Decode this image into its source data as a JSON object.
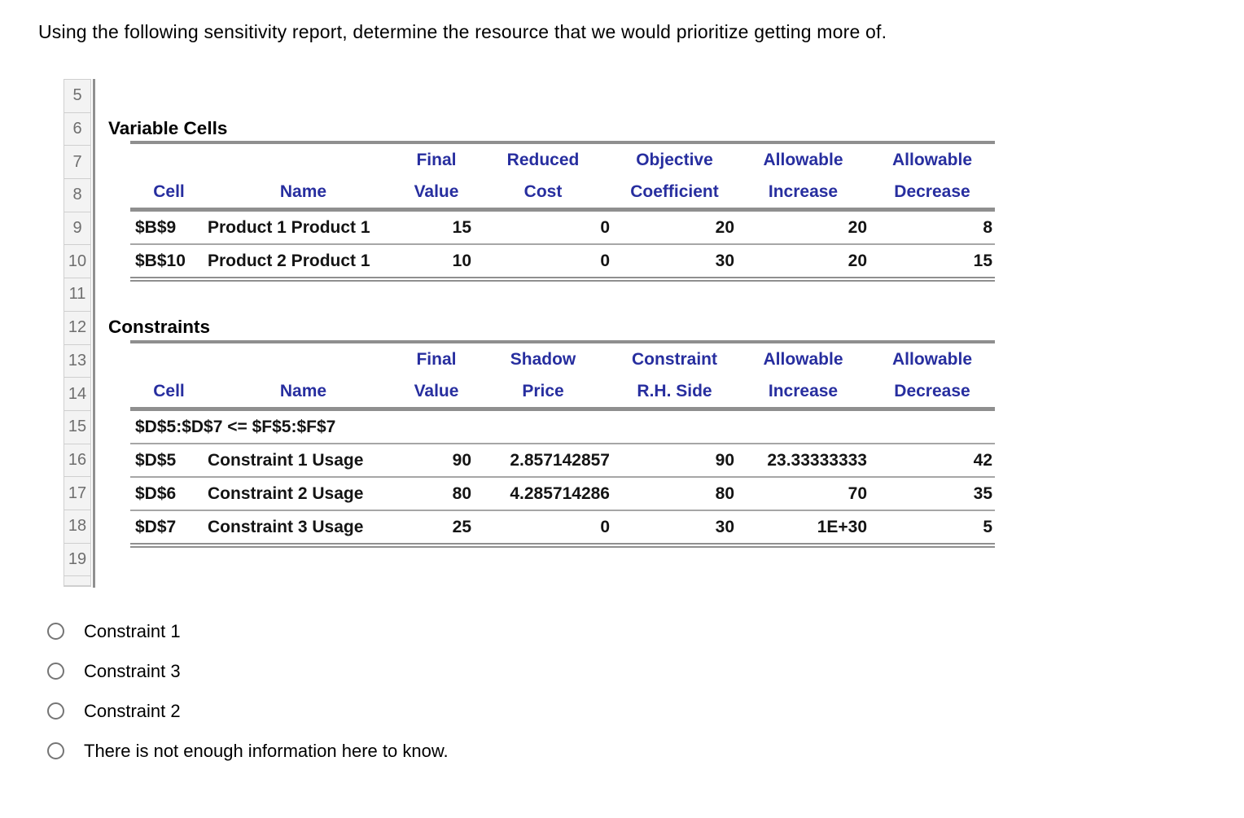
{
  "question": "Using the following sensitivity report, determine the resource that we would prioritize getting more of.",
  "colors": {
    "header_text": "#272e9f",
    "table_border_major": "#8f8f8f",
    "table_row_separator": "#a6a6a6",
    "row_header_bg": "#f3f3f3",
    "row_header_text": "#6e6e6e",
    "radio_border": "#757575",
    "body_text": "#000000"
  },
  "spreadsheet": {
    "row_numbers": [
      "5",
      "6",
      "7",
      "8",
      "9",
      "10",
      "11",
      "12",
      "13",
      "14",
      "15",
      "16",
      "17",
      "18",
      "19"
    ],
    "variable_cells": {
      "section_label": "Variable Cells",
      "header_top": [
        "Final",
        "Reduced",
        "Objective",
        "Allowable",
        "Allowable"
      ],
      "header_bottom": [
        "Cell",
        "Name",
        "Value",
        "Cost",
        "Coefficient",
        "Increase",
        "Decrease"
      ],
      "rows": [
        {
          "cell": "$B$9",
          "name": "Product 1 Product 1",
          "final_value": "15",
          "reduced_cost": "0",
          "objective_coefficient": "20",
          "allowable_increase": "20",
          "allowable_decrease": "8"
        },
        {
          "cell": "$B$10",
          "name": "Product 2 Product 1",
          "final_value": "10",
          "reduced_cost": "0",
          "objective_coefficient": "30",
          "allowable_increase": "20",
          "allowable_decrease": "15"
        }
      ]
    },
    "constraints": {
      "section_label": "Constraints",
      "header_top": [
        "Final",
        "Shadow",
        "Constraint",
        "Allowable",
        "Allowable"
      ],
      "header_bottom": [
        "Cell",
        "Name",
        "Value",
        "Price",
        "R.H. Side",
        "Increase",
        "Decrease"
      ],
      "range_row": "$D$5:$D$7 <= $F$5:$F$7",
      "rows": [
        {
          "cell": "$D$5",
          "name": "Constraint 1 Usage",
          "final_value": "90",
          "shadow_price": "2.857142857",
          "rhs": "90",
          "allowable_increase": "23.33333333",
          "allowable_decrease": "42"
        },
        {
          "cell": "$D$6",
          "name": "Constraint 2 Usage",
          "final_value": "80",
          "shadow_price": "4.285714286",
          "rhs": "80",
          "allowable_increase": "70",
          "allowable_decrease": "35"
        },
        {
          "cell": "$D$7",
          "name": "Constraint 3 Usage",
          "final_value": "25",
          "shadow_price": "0",
          "rhs": "30",
          "allowable_increase": "1E+30",
          "allowable_decrease": "5"
        }
      ]
    }
  },
  "options": [
    {
      "label": "Constraint 1",
      "selected": false
    },
    {
      "label": "Constraint 3",
      "selected": false
    },
    {
      "label": "Constraint 2",
      "selected": false
    },
    {
      "label": "There is not enough information here to know.",
      "selected": false
    }
  ]
}
